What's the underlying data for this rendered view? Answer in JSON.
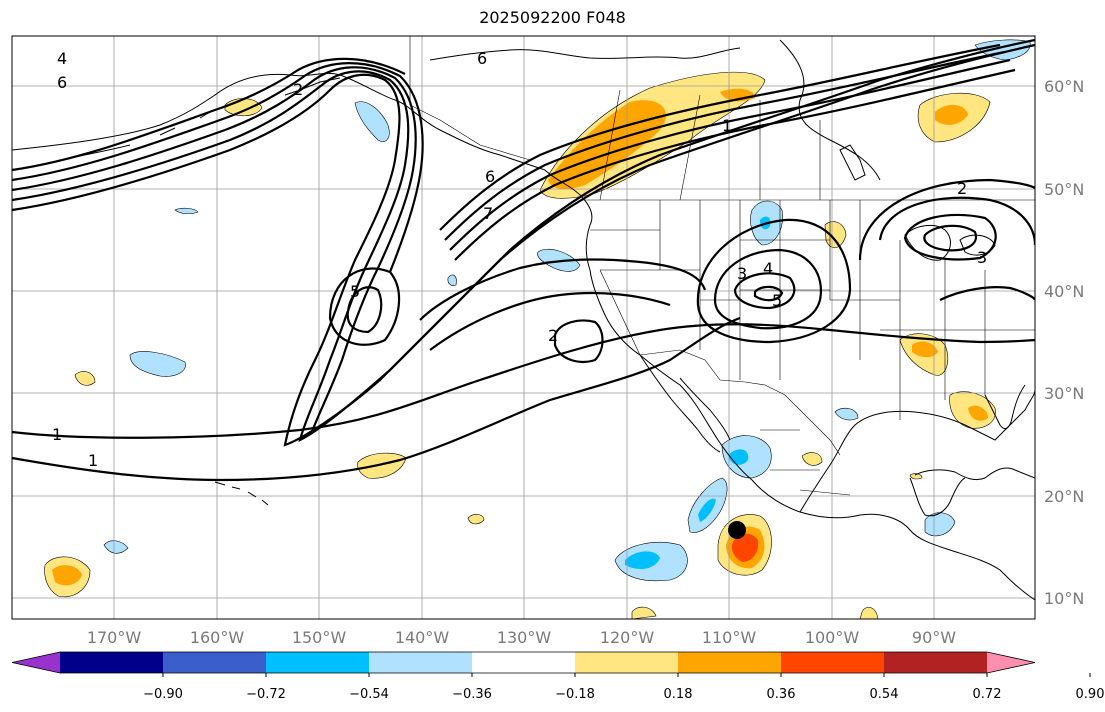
{
  "title": "2025092200 F048",
  "lon_labels": [
    "170°W",
    "160°W",
    "150°W",
    "140°W",
    "130°W",
    "120°W",
    "110°W",
    "100°W",
    "90°W"
  ],
  "lat_labels": [
    "60°N",
    "50°N",
    "40°N",
    "30°N",
    "20°N",
    "10°N"
  ],
  "colorbar": {
    "colors": [
      "#9932cc",
      "#00008b",
      "#3a5fcd",
      "#00bfff",
      "#b0e2ff",
      "#ffffff",
      "#ffe680",
      "#ffa500",
      "#ff4500",
      "#b22222",
      "#ff8fb1"
    ],
    "ticks": [
      "−0.90",
      "−0.72",
      "−0.54",
      "−0.36",
      "−0.18",
      "0.18",
      "0.36",
      "0.54",
      "0.72",
      "0.90"
    ]
  },
  "contour_labels": [
    "4",
    "6",
    "6",
    "1",
    "1",
    "2",
    "2",
    "3",
    "4",
    "5",
    "5",
    "6",
    "7",
    "1",
    "2",
    "3"
  ],
  "marker": "storm-center"
}
